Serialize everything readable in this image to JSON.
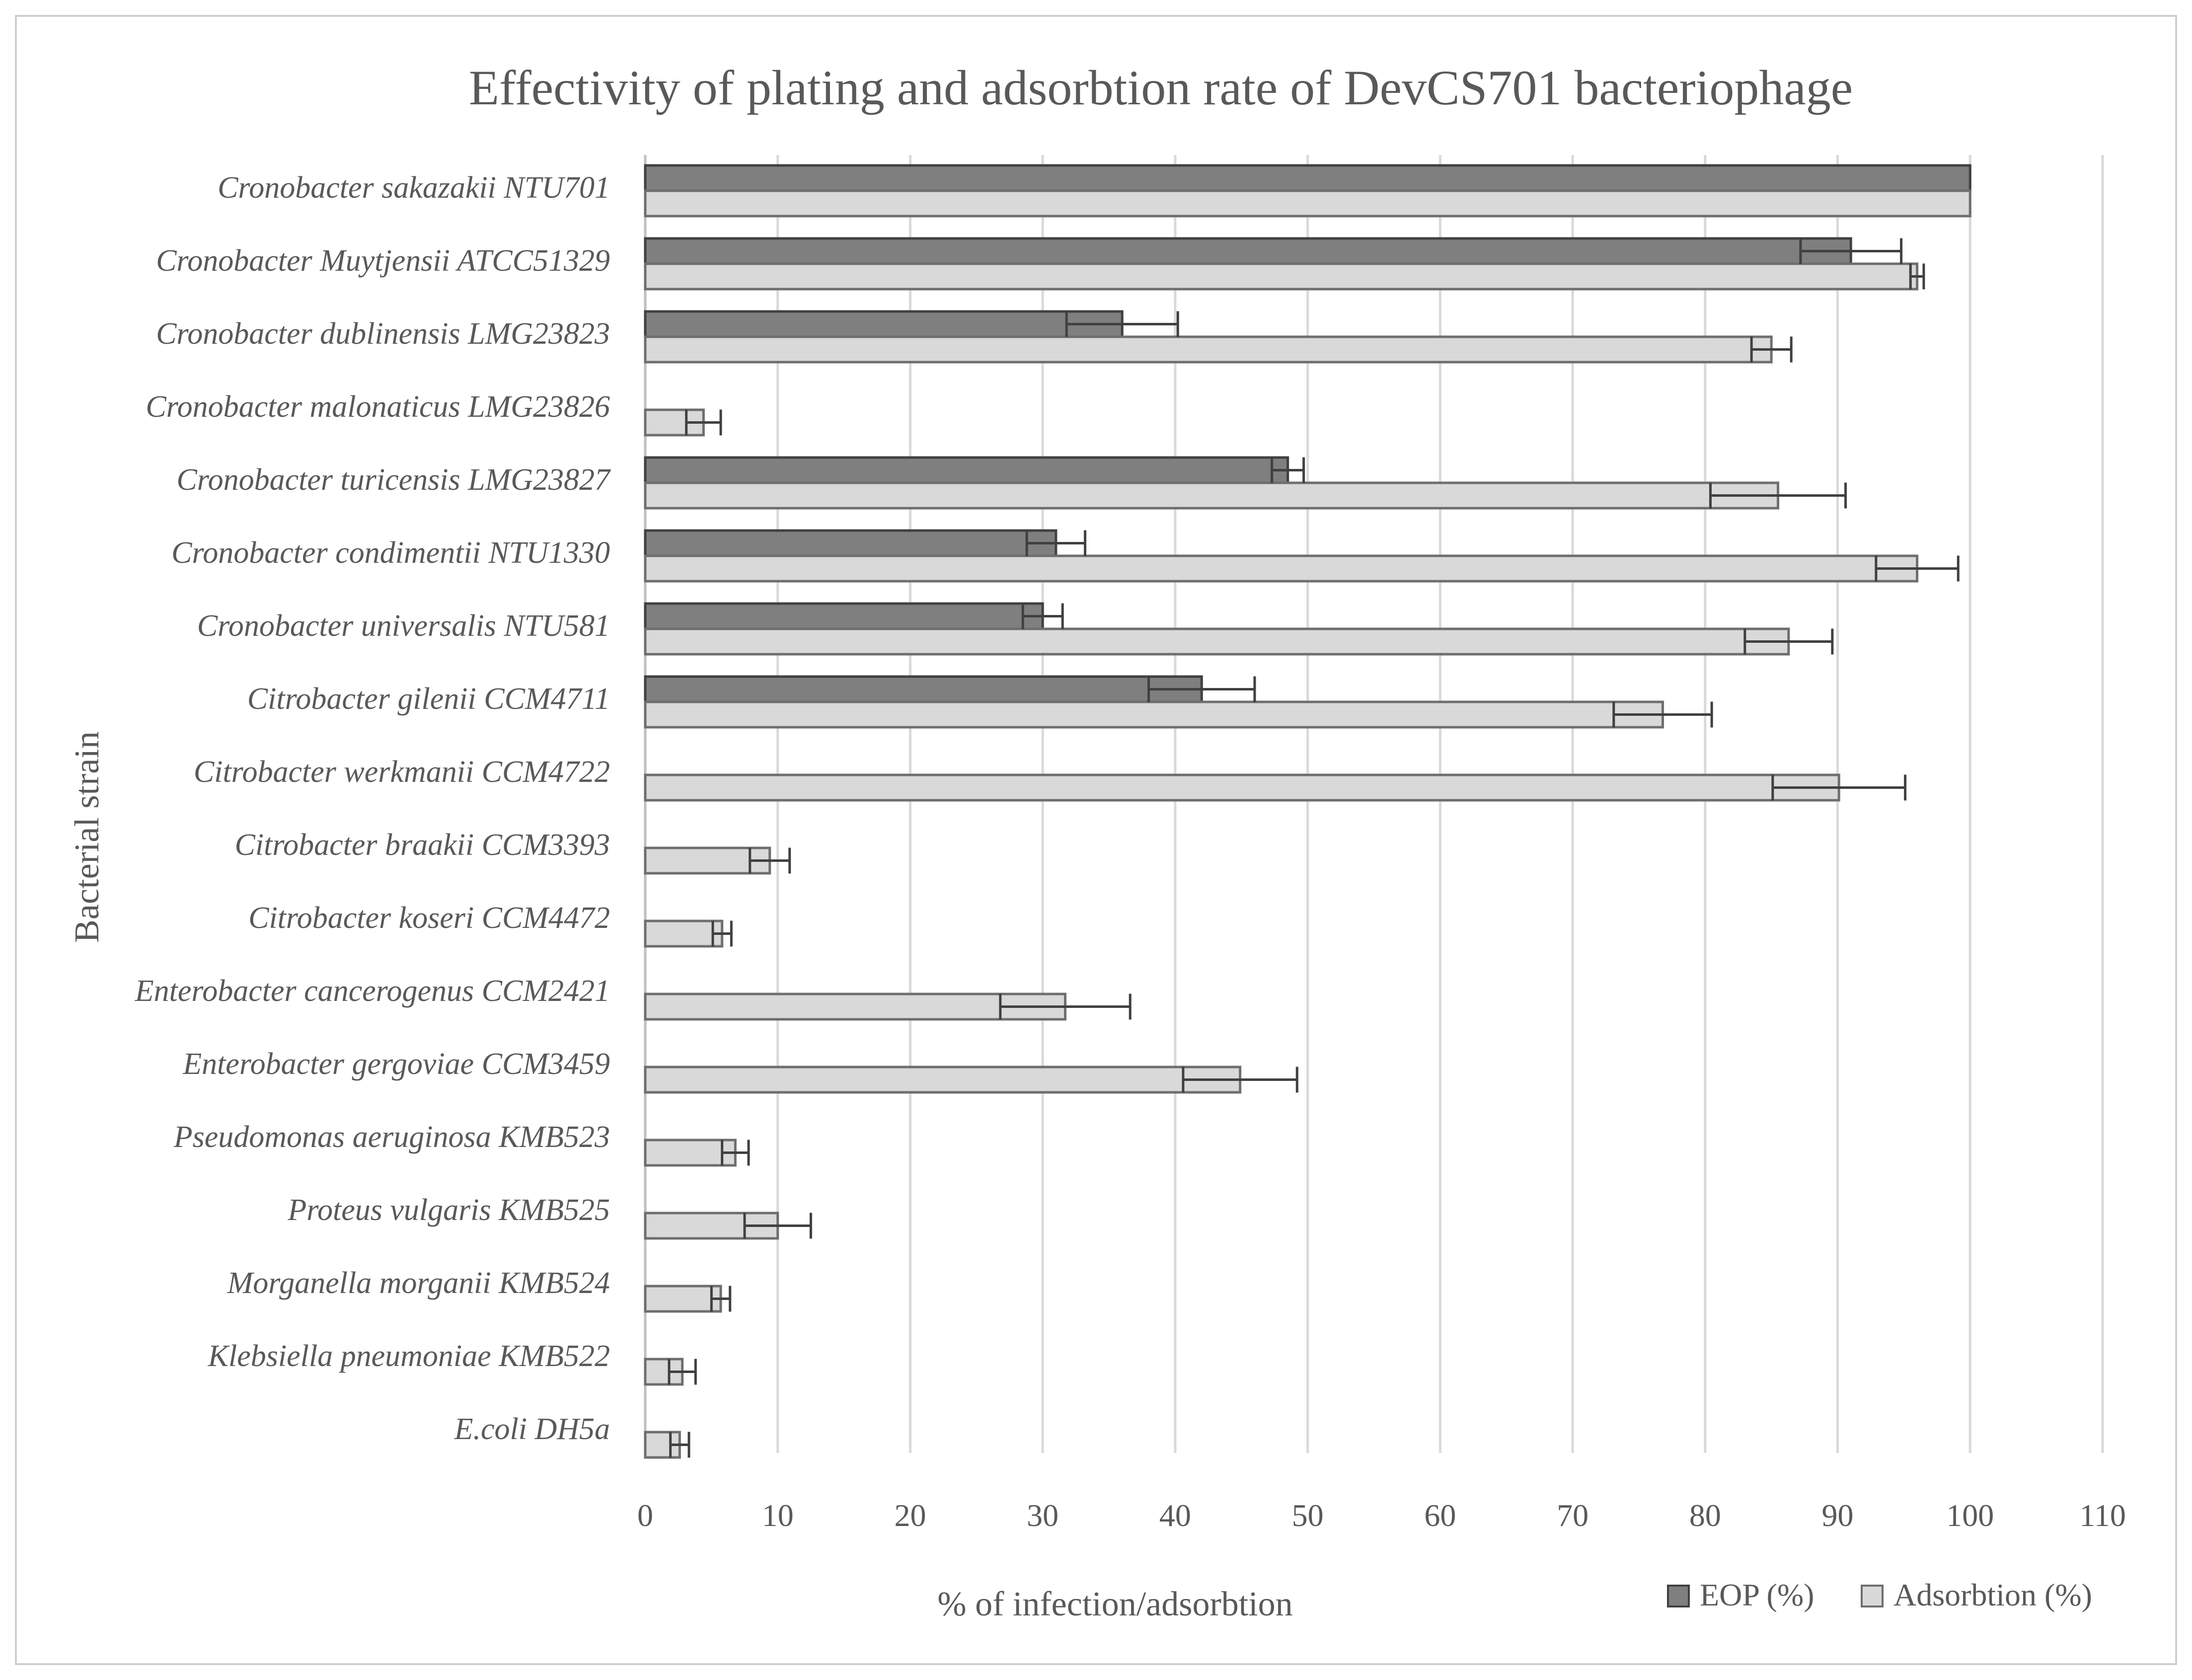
{
  "chart_data": {
    "type": "bar",
    "orientation": "horizontal",
    "title": "Effectivity of plating and adsorbtion rate of DevCS701 bacteriophage",
    "xlabel": "% of infection/adsorbtion",
    "ylabel": "Bacterial strain",
    "xlim": [
      0,
      110
    ],
    "xticks": [
      "0",
      "10",
      "20",
      "30",
      "40",
      "50",
      "60",
      "70",
      "80",
      "90",
      "100",
      "110"
    ],
    "grid": "vertical",
    "legend_position": "bottom-right",
    "categories": [
      "Cronobacter sakazakii NTU701",
      "Cronobacter Muytjensii ATCC51329",
      "Cronobacter dublinensis LMG23823",
      "Cronobacter malonaticus LMG23826",
      "Cronobacter turicensis LMG23827",
      "Cronobacter condimentii NTU1330",
      "Cronobacter universalis NTU581",
      "Citrobacter gilenii CCM4711",
      "Citrobacter werkmanii CCM4722",
      "Citrobacter braakii CCM3393",
      "Citrobacter koseri CCM4472",
      "Enterobacter cancerogenus CCM2421",
      "Enterobacter gergoviae CCM3459",
      "Pseudomonas aeruginosa KMB523",
      "Proteus vulgaris KMB525",
      "Morganella morganii KMB524",
      "Klebsiella pneumoniae KMB522",
      "E.coli DH5a"
    ],
    "series": [
      {
        "name": "EOP (%)",
        "color": "#7f7f7f",
        "values": [
          100,
          91,
          36,
          null,
          48.5,
          31,
          30,
          42,
          null,
          null,
          null,
          null,
          null,
          null,
          null,
          null,
          null,
          null
        ],
        "errors": [
          0,
          3.8,
          4.2,
          null,
          1.2,
          2.2,
          1.5,
          4,
          null,
          null,
          null,
          null,
          null,
          null,
          null,
          null,
          null,
          null
        ]
      },
      {
        "name": "Adsorbtion (%)",
        "color": "#d9d9d9",
        "values": [
          100,
          96,
          85,
          4.4,
          85.5,
          96,
          86.3,
          76.8,
          90.1,
          9.4,
          5.8,
          31.7,
          44.9,
          6.8,
          10,
          5.7,
          2.8,
          2.6
        ],
        "errors": [
          0,
          0.5,
          1.5,
          1.3,
          5.1,
          3.1,
          3.3,
          3.7,
          5,
          1.5,
          0.7,
          4.9,
          4.3,
          1,
          2.5,
          0.7,
          1,
          0.7
        ]
      }
    ]
  }
}
